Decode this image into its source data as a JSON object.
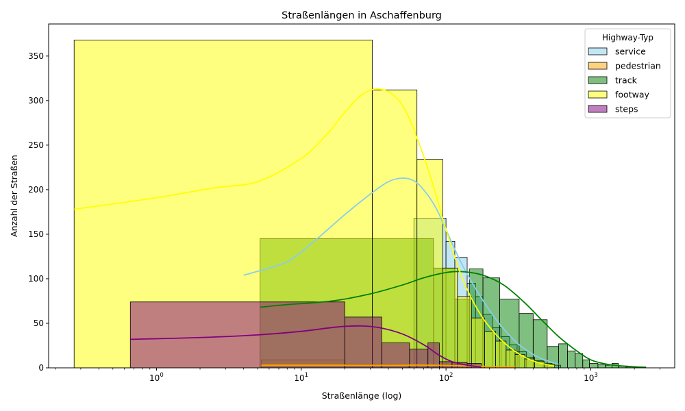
{
  "chart_data": {
    "type": "histogram",
    "title": "Straßenlängen in Aschaffenburg",
    "xlabel": "Straßenlänge (log)",
    "ylabel": "Anzahl der Straßen",
    "xscale": "log",
    "xlim": [
      0.18,
      3800
    ],
    "ylim": [
      0,
      386
    ],
    "yticks": [
      0,
      50,
      100,
      150,
      200,
      250,
      300,
      350
    ],
    "xticks": [
      {
        "value": 1,
        "base": "10",
        "exp": "0"
      },
      {
        "value": 10,
        "base": "10",
        "exp": "1"
      },
      {
        "value": 100,
        "base": "10",
        "exp": "2"
      },
      {
        "value": 1000,
        "base": "10",
        "exp": "3"
      }
    ],
    "legend": {
      "title": "Highway-Typ",
      "position": "top-right"
    },
    "series": [
      {
        "name": "service",
        "fill": "#87ceeb",
        "line": "#87ceeb",
        "bins": [
          {
            "x0": 60,
            "x1": 100,
            "y": 168
          },
          {
            "x0": 100,
            "x1": 115,
            "y": 142
          },
          {
            "x0": 115,
            "x1": 140,
            "y": 124
          },
          {
            "x0": 140,
            "x1": 160,
            "y": 95
          },
          {
            "x0": 160,
            "x1": 180,
            "y": 80
          },
          {
            "x0": 180,
            "x1": 210,
            "y": 60
          },
          {
            "x0": 210,
            "x1": 240,
            "y": 45
          },
          {
            "x0": 240,
            "x1": 275,
            "y": 35
          },
          {
            "x0": 275,
            "x1": 310,
            "y": 26
          },
          {
            "x0": 310,
            "x1": 360,
            "y": 18
          },
          {
            "x0": 360,
            "x1": 410,
            "y": 12
          },
          {
            "x0": 410,
            "x1": 470,
            "y": 8
          },
          {
            "x0": 470,
            "x1": 540,
            "y": 5
          },
          {
            "x0": 540,
            "x1": 620,
            "y": 3
          }
        ],
        "kde": [
          [
            4,
            104
          ],
          [
            6,
            112
          ],
          [
            8,
            119
          ],
          [
            10,
            130
          ],
          [
            14,
            150
          ],
          [
            20,
            172
          ],
          [
            30,
            195
          ],
          [
            40,
            209
          ],
          [
            50,
            213
          ],
          [
            60,
            210
          ],
          [
            70,
            200
          ],
          [
            85,
            180
          ],
          [
            100,
            155
          ],
          [
            130,
            115
          ],
          [
            170,
            82
          ],
          [
            220,
            55
          ],
          [
            300,
            30
          ],
          [
            400,
            15
          ],
          [
            500,
            8
          ],
          [
            600,
            4
          ]
        ]
      },
      {
        "name": "pedestrian",
        "fill": "#ffa500",
        "line": "#ffa500",
        "bins": [
          {
            "x0": 5.3,
            "x1": 20,
            "y": 9
          },
          {
            "x0": 20,
            "x1": 55,
            "y": 4
          },
          {
            "x0": 55,
            "x1": 85,
            "y": 3
          },
          {
            "x0": 85,
            "x1": 130,
            "y": 2
          },
          {
            "x0": 130,
            "x1": 200,
            "y": 2
          }
        ],
        "kde": [
          [
            5.3,
            3
          ],
          [
            10,
            3
          ],
          [
            20,
            3
          ],
          [
            40,
            3
          ],
          [
            80,
            3
          ],
          [
            150,
            2
          ],
          [
            300,
            1
          ]
        ]
      },
      {
        "name": "track",
        "fill": "#008000",
        "line": "#008000",
        "bins": [
          {
            "x0": 5.2,
            "x1": 82,
            "y": 145
          },
          {
            "x0": 82,
            "x1": 115,
            "y": 112
          },
          {
            "x0": 115,
            "x1": 145,
            "y": 77
          },
          {
            "x0": 145,
            "x1": 180,
            "y": 111
          },
          {
            "x0": 180,
            "x1": 235,
            "y": 101
          },
          {
            "x0": 235,
            "x1": 320,
            "y": 77
          },
          {
            "x0": 320,
            "x1": 400,
            "y": 61
          },
          {
            "x0": 400,
            "x1": 500,
            "y": 54
          },
          {
            "x0": 500,
            "x1": 600,
            "y": 24
          },
          {
            "x0": 600,
            "x1": 690,
            "y": 27
          },
          {
            "x0": 690,
            "x1": 780,
            "y": 19
          },
          {
            "x0": 780,
            "x1": 880,
            "y": 16
          },
          {
            "x0": 880,
            "x1": 980,
            "y": 9
          },
          {
            "x0": 980,
            "x1": 1120,
            "y": 5
          },
          {
            "x0": 1120,
            "x1": 1260,
            "y": 4
          },
          {
            "x0": 1260,
            "x1": 1400,
            "y": 3
          },
          {
            "x0": 1400,
            "x1": 1550,
            "y": 5
          },
          {
            "x0": 1550,
            "x1": 1750,
            "y": 2
          },
          {
            "x0": 1750,
            "x1": 2000,
            "y": 1
          },
          {
            "x0": 2000,
            "x1": 2400,
            "y": 1
          }
        ],
        "kde": [
          [
            5.2,
            68
          ],
          [
            8,
            71
          ],
          [
            12,
            73
          ],
          [
            18,
            76
          ],
          [
            30,
            83
          ],
          [
            50,
            93
          ],
          [
            70,
            101
          ],
          [
            100,
            107
          ],
          [
            130,
            108
          ],
          [
            180,
            104
          ],
          [
            250,
            93
          ],
          [
            350,
            73
          ],
          [
            450,
            55
          ],
          [
            600,
            35
          ],
          [
            800,
            19
          ],
          [
            1000,
            9
          ],
          [
            1300,
            4
          ],
          [
            1700,
            2
          ],
          [
            2400,
            0.5
          ]
        ]
      },
      {
        "name": "footway",
        "fill": "#ffff00",
        "line": "#ffff00",
        "bins": [
          {
            "x0": 0.27,
            "x1": 31,
            "y": 368
          },
          {
            "x0": 31,
            "x1": 63,
            "y": 312
          },
          {
            "x0": 63,
            "x1": 95,
            "y": 234
          },
          {
            "x0": 95,
            "x1": 120,
            "y": 112
          },
          {
            "x0": 120,
            "x1": 150,
            "y": 80
          },
          {
            "x0": 150,
            "x1": 185,
            "y": 56
          },
          {
            "x0": 185,
            "x1": 220,
            "y": 41
          },
          {
            "x0": 220,
            "x1": 260,
            "y": 30
          },
          {
            "x0": 260,
            "x1": 300,
            "y": 20
          },
          {
            "x0": 300,
            "x1": 350,
            "y": 15
          },
          {
            "x0": 350,
            "x1": 410,
            "y": 10
          },
          {
            "x0": 410,
            "x1": 480,
            "y": 7
          },
          {
            "x0": 480,
            "x1": 560,
            "y": 4
          }
        ],
        "kde": [
          [
            0.27,
            178
          ],
          [
            1,
            191
          ],
          [
            2.5,
            202
          ],
          [
            5,
            209
          ],
          [
            10,
            235
          ],
          [
            15,
            262
          ],
          [
            20,
            287
          ],
          [
            27,
            308
          ],
          [
            35,
            313
          ],
          [
            45,
            304
          ],
          [
            55,
            282
          ],
          [
            70,
            238
          ],
          [
            85,
            195
          ],
          [
            100,
            155
          ],
          [
            130,
            100
          ],
          [
            170,
            62
          ],
          [
            220,
            38
          ],
          [
            280,
            22
          ],
          [
            350,
            12
          ],
          [
            430,
            6
          ],
          [
            560,
            2
          ]
        ]
      },
      {
        "name": "steps",
        "fill": "#800080",
        "line": "#800080",
        "bins": [
          {
            "x0": 0.66,
            "x1": 20,
            "y": 74
          },
          {
            "x0": 20,
            "x1": 36,
            "y": 57
          },
          {
            "x0": 36,
            "x1": 56,
            "y": 28
          },
          {
            "x0": 56,
            "x1": 75,
            "y": 21
          },
          {
            "x0": 75,
            "x1": 90,
            "y": 28
          },
          {
            "x0": 90,
            "x1": 110,
            "y": 7
          },
          {
            "x0": 110,
            "x1": 140,
            "y": 6
          },
          {
            "x0": 140,
            "x1": 175,
            "y": 5
          }
        ],
        "kde": [
          [
            0.66,
            32
          ],
          [
            2,
            34
          ],
          [
            5,
            37
          ],
          [
            10,
            41
          ],
          [
            18,
            46
          ],
          [
            26,
            47
          ],
          [
            35,
            45
          ],
          [
            50,
            38
          ],
          [
            70,
            26
          ],
          [
            90,
            14
          ],
          [
            110,
            7
          ],
          [
            140,
            3
          ],
          [
            175,
            1
          ]
        ]
      }
    ]
  }
}
